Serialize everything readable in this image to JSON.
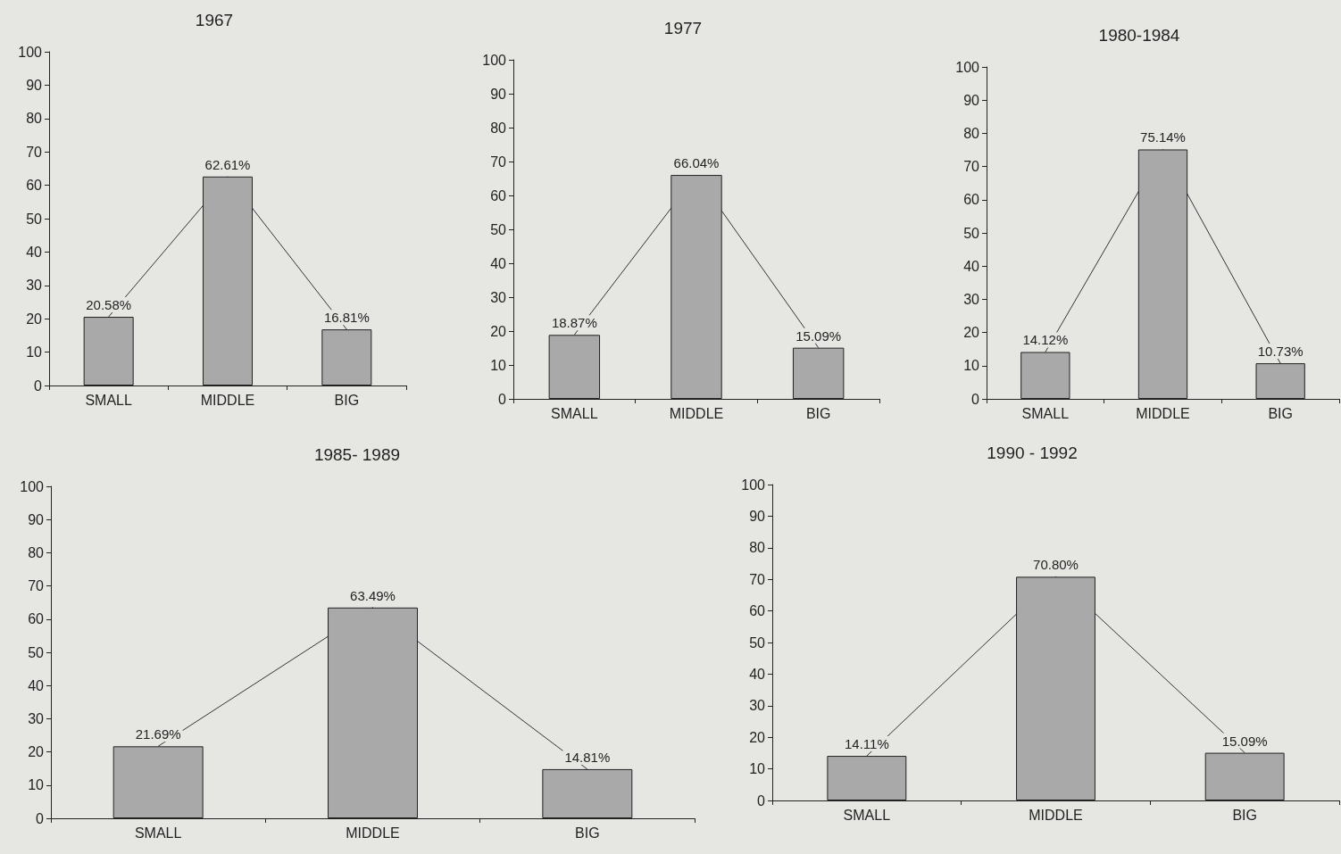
{
  "chart_data": [
    {
      "type": "bar",
      "title": "1967",
      "categories": [
        "SMALL",
        "MIDDLE",
        "BIG"
      ],
      "ylim": [
        0,
        100
      ],
      "yticks": [
        0,
        10,
        20,
        30,
        40,
        50,
        60,
        70,
        80,
        90,
        100
      ],
      "grid": false,
      "marker": "none",
      "series": [
        {
          "color": "#a9a9a9",
          "values": [
            20.58,
            62.61,
            16.81
          ],
          "value_labels": [
            "20.58%",
            "62.61%",
            "16.81%"
          ]
        },
        {
          "type": "line",
          "color": "#333333",
          "values": [
            20.6,
            62.6,
            16.8
          ]
        }
      ]
    },
    {
      "type": "bar",
      "title": "1977",
      "categories": [
        "SMALL",
        "MIDDLE",
        "BIG"
      ],
      "ylim": [
        0,
        100
      ],
      "yticks": [
        0,
        10,
        20,
        30,
        40,
        50,
        60,
        70,
        80,
        90,
        100
      ],
      "grid": false,
      "marker": "none",
      "series": [
        {
          "color": "#a9a9a9",
          "values": [
            18.87,
            66.04,
            15.09
          ],
          "value_labels": [
            "18.87%",
            "66.04%",
            "15.09%"
          ]
        },
        {
          "type": "line",
          "color": "#333333",
          "values": [
            18.9,
            66.0,
            15.1
          ]
        }
      ]
    },
    {
      "type": "bar",
      "title": "1980-1984",
      "categories": [
        "SMALL",
        "MIDDLE",
        "BIG"
      ],
      "ylim": [
        0,
        100
      ],
      "yticks": [
        0,
        10,
        20,
        30,
        40,
        50,
        60,
        70,
        80,
        90,
        100
      ],
      "grid": false,
      "marker": "none",
      "series": [
        {
          "color": "#a9a9a9",
          "values": [
            14.12,
            75.14,
            10.73
          ],
          "value_labels": [
            "14.12%",
            "75.14%",
            "10.73%"
          ]
        },
        {
          "type": "line",
          "color": "#333333",
          "values": [
            14.1,
            75.1,
            10.7
          ]
        }
      ]
    },
    {
      "type": "bar",
      "title": "1985- 1989",
      "categories": [
        "SMALL",
        "MIDDLE",
        "BIG"
      ],
      "ylim": [
        0,
        100
      ],
      "yticks": [
        0,
        10,
        20,
        30,
        40,
        50,
        60,
        70,
        80,
        90,
        100
      ],
      "grid": false,
      "marker": "none",
      "series": [
        {
          "color": "#a9a9a9",
          "values": [
            21.69,
            63.49,
            14.81
          ],
          "value_labels": [
            "21.69%",
            "63.49%",
            "14.81%"
          ]
        },
        {
          "type": "line",
          "color": "#333333",
          "values": [
            21.7,
            63.5,
            14.8
          ]
        }
      ]
    },
    {
      "type": "bar",
      "title": "1990 - 1992",
      "categories": [
        "SMALL",
        "MIDDLE",
        "BIG"
      ],
      "ylim": [
        0,
        100
      ],
      "yticks": [
        0,
        10,
        20,
        30,
        40,
        50,
        60,
        70,
        80,
        90,
        100
      ],
      "grid": false,
      "marker": "none",
      "series": [
        {
          "color": "#a9a9a9",
          "values": [
            14.11,
            70.8,
            15.09
          ],
          "value_labels": [
            "14.11%",
            "70.80%",
            "15.09%"
          ]
        },
        {
          "type": "line",
          "color": "#333333",
          "values": [
            14.1,
            70.8,
            15.1
          ]
        }
      ]
    }
  ]
}
